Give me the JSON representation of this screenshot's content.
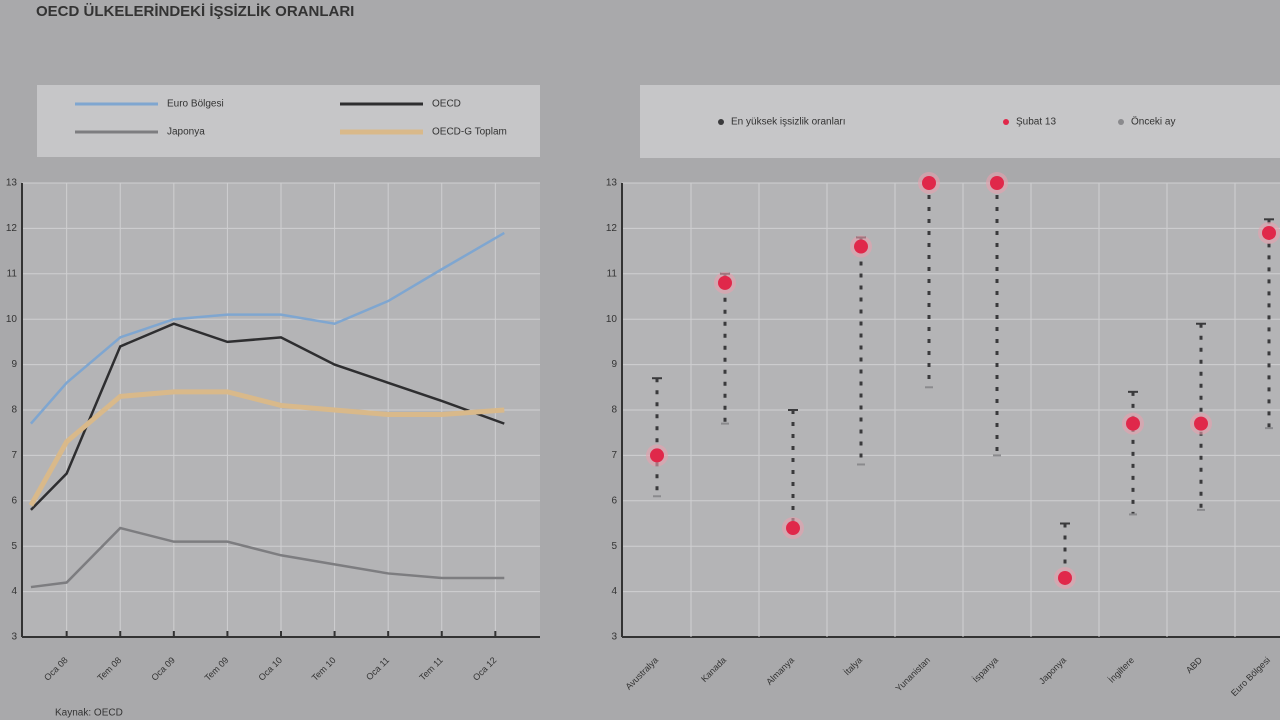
{
  "title": "OECD ÜLKELERİNDEKİ İŞSİZLİK ORANLARI",
  "source": "Kaynak: OECD",
  "chart_data": [
    {
      "type": "line",
      "x": [
        1,
        5,
        11,
        17,
        23,
        29,
        35,
        41,
        47,
        54
      ],
      "xlim": [
        0,
        58
      ],
      "xticks": [
        {
          "value": 5,
          "label": "Oca 08"
        },
        {
          "value": 11,
          "label": "Tem 08"
        },
        {
          "value": 17,
          "label": "Oca 09"
        },
        {
          "value": 23,
          "label": "Tem 09"
        },
        {
          "value": 29,
          "label": "Oca 10"
        },
        {
          "value": 35,
          "label": "Tem 10"
        },
        {
          "value": 41,
          "label": "Oca 11"
        },
        {
          "value": 47,
          "label": "Tem 11"
        },
        {
          "value": 53,
          "label": "Oca 12"
        }
      ],
      "ylim": [
        3,
        13
      ],
      "yticks": [
        3,
        4,
        5,
        6,
        7,
        8,
        9,
        10,
        11,
        12,
        13
      ],
      "grid": true,
      "series": [
        {
          "name": "Euro Bölgesi",
          "color": "#7fa6d0",
          "values": [
            7.7,
            8.6,
            9.6,
            10.0,
            10.1,
            10.1,
            9.9,
            10.4,
            11.1,
            11.9
          ]
        },
        {
          "name": "OECD",
          "color": "#2e2e30",
          "values": [
            5.8,
            6.6,
            9.4,
            9.9,
            9.5,
            9.6,
            9.0,
            8.6,
            8.2,
            7.7
          ]
        },
        {
          "name": "Japonya",
          "color": "#7d7d80",
          "values": [
            4.1,
            4.2,
            5.4,
            5.1,
            5.1,
            4.8,
            4.6,
            4.4,
            4.3,
            4.3
          ]
        },
        {
          "name": "OECD-G Toplam",
          "color": "#d9b98a",
          "values": [
            5.9,
            7.3,
            8.3,
            8.4,
            8.4,
            8.1,
            8.0,
            7.9,
            7.9,
            8.0
          ]
        }
      ]
    },
    {
      "type": "range",
      "categories": [
        "Avustralya",
        "Kanada",
        "Almanya",
        "İtalya",
        "Yunanistan",
        "İspanya",
        "Japonya",
        "İngiltere",
        "ABD",
        "Euro Bölgesi"
      ],
      "ylim": [
        3,
        13
      ],
      "yticks": [
        3,
        4,
        5,
        6,
        7,
        8,
        9,
        10,
        11,
        12,
        13
      ],
      "grid": true,
      "series": [
        {
          "name": "En yüksek işsizlik oranları",
          "color": "#3a3a3c",
          "values": [
            8.7,
            11.0,
            8.0,
            11.8,
            13.0,
            13.0,
            5.5,
            8.4,
            9.9,
            12.2
          ]
        },
        {
          "name": "Şubat 13",
          "color": "#e0284a",
          "values": [
            7.0,
            10.8,
            5.4,
            11.6,
            13.0,
            13.0,
            4.3,
            7.7,
            7.7,
            11.9
          ]
        },
        {
          "name": "Önceki ay",
          "color": "#8a8a8d",
          "values": [
            6.1,
            7.7,
            5.4,
            6.8,
            8.5,
            7.0,
            4.3,
            5.7,
            5.8,
            7.6
          ]
        }
      ]
    }
  ]
}
